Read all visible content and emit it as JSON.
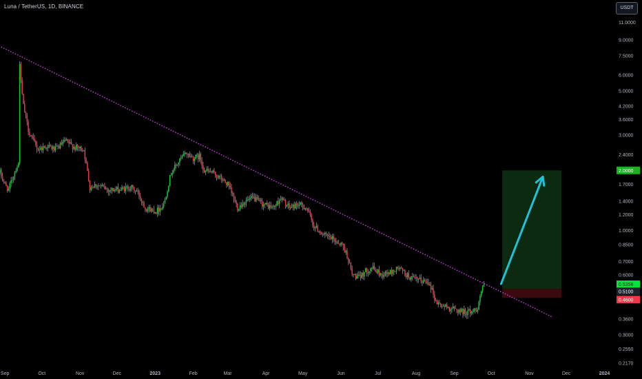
{
  "header": {
    "symbol_title": "Luna / TetherUS, 1D, BINANCE",
    "currency_button": "USDT"
  },
  "chart_data": {
    "type": "candlestick",
    "title": "Luna / TetherUS, 1D, BINANCE",
    "yscale": "log",
    "ylim": [
      0.205,
      11.6
    ],
    "x_tick_labels": [
      "Sep",
      "Oct",
      "Nov",
      "Dec",
      "2023",
      "Feb",
      "Mar",
      "Apr",
      "May",
      "Jun",
      "Jul",
      "Aug",
      "Sep",
      "Oct",
      "Nov",
      "Dec",
      "2024"
    ],
    "y_tick_labels": [
      "11.0000",
      "9.0000",
      "7.5000",
      "6.0000",
      "5.0000",
      "4.2000",
      "3.6000",
      "3.0000",
      "2.4000",
      "1.7000",
      "1.4000",
      "1.2000",
      "1.0000",
      "0.8500",
      "0.7000",
      "0.6000",
      "0.3600",
      "0.3000",
      "0.2550",
      "0.2170"
    ],
    "x_range": [
      "2022-08-28",
      "2024-01-08"
    ],
    "price_path": [
      [
        "2022-08-28",
        1.95
      ],
      [
        "2022-09-01",
        1.7
      ],
      [
        "2022-09-04",
        1.6
      ],
      [
        "2022-09-08",
        1.9
      ],
      [
        "2022-09-10",
        2.05
      ],
      [
        "2022-09-12",
        2.15
      ],
      [
        "2022-09-13",
        7.0
      ],
      [
        "2022-09-14",
        5.5
      ],
      [
        "2022-09-16",
        4.2
      ],
      [
        "2022-09-20",
        3.2
      ],
      [
        "2022-09-24",
        2.8
      ],
      [
        "2022-09-28",
        2.55
      ],
      [
        "2022-10-05",
        2.65
      ],
      [
        "2022-10-12",
        2.55
      ],
      [
        "2022-10-20",
        2.8
      ],
      [
        "2022-10-28",
        2.6
      ],
      [
        "2022-11-04",
        2.55
      ],
      [
        "2022-11-09",
        1.65
      ],
      [
        "2022-11-14",
        1.7
      ],
      [
        "2022-11-24",
        1.6
      ],
      [
        "2022-12-04",
        1.6
      ],
      [
        "2022-12-12",
        1.65
      ],
      [
        "2022-12-18",
        1.55
      ],
      [
        "2022-12-24",
        1.3
      ],
      [
        "2023-01-02",
        1.25
      ],
      [
        "2023-01-08",
        1.35
      ],
      [
        "2023-01-14",
        1.95
      ],
      [
        "2023-01-20",
        2.2
      ],
      [
        "2023-01-26",
        2.45
      ],
      [
        "2023-02-01",
        2.3
      ],
      [
        "2023-02-06",
        2.35
      ],
      [
        "2023-02-10",
        2.0
      ],
      [
        "2023-02-16",
        1.95
      ],
      [
        "2023-02-22",
        1.85
      ],
      [
        "2023-03-01",
        1.7
      ],
      [
        "2023-03-09",
        1.3
      ],
      [
        "2023-03-15",
        1.4
      ],
      [
        "2023-03-22",
        1.45
      ],
      [
        "2023-03-30",
        1.35
      ],
      [
        "2023-04-07",
        1.3
      ],
      [
        "2023-04-13",
        1.45
      ],
      [
        "2023-04-20",
        1.3
      ],
      [
        "2023-04-27",
        1.35
      ],
      [
        "2023-05-04",
        1.3
      ],
      [
        "2023-05-10",
        1.05
      ],
      [
        "2023-05-18",
        0.95
      ],
      [
        "2023-05-26",
        0.9
      ],
      [
        "2023-06-02",
        0.85
      ],
      [
        "2023-06-06",
        0.75
      ],
      [
        "2023-06-10",
        0.6
      ],
      [
        "2023-06-16",
        0.58
      ],
      [
        "2023-06-20",
        0.62
      ],
      [
        "2023-06-26",
        0.65
      ],
      [
        "2023-07-04",
        0.6
      ],
      [
        "2023-07-12",
        0.62
      ],
      [
        "2023-07-18",
        0.65
      ],
      [
        "2023-07-24",
        0.6
      ],
      [
        "2023-07-30",
        0.57
      ],
      [
        "2023-08-06",
        0.56
      ],
      [
        "2023-08-12",
        0.55
      ],
      [
        "2023-08-17",
        0.44
      ],
      [
        "2023-08-22",
        0.42
      ],
      [
        "2023-08-28",
        0.41
      ],
      [
        "2023-09-03",
        0.4
      ],
      [
        "2023-09-10",
        0.39
      ],
      [
        "2023-09-16",
        0.395
      ],
      [
        "2023-09-20",
        0.41
      ],
      [
        "2023-09-23",
        0.5
      ],
      [
        "2023-09-25",
        0.5358
      ]
    ],
    "annotations": {
      "trendline": {
        "start": [
          "2022-08-29",
          8.3
        ],
        "end": [
          "2023-11-20",
          0.368
        ],
        "color": "#e040fb",
        "style": "dotted"
      },
      "target_zone": {
        "x_start": "2023-10-10",
        "x_end": "2023-11-27",
        "low": 0.51,
        "high": 2.0,
        "color": "#0b2a10"
      },
      "stop_zone": {
        "x_start": "2023-10-10",
        "x_end": "2023-11-27",
        "low": 0.46,
        "high": 0.51,
        "color": "#3a0a0e"
      },
      "arrow": {
        "start": [
          "2023-10-09",
          0.54
        ],
        "end": [
          "2023-11-12",
          1.86
        ],
        "color": "#1fc2d9"
      }
    },
    "price_labels": [
      {
        "label": "2.0000",
        "value": 2.0,
        "bg": "#1db11d",
        "fg": "#ffffff"
      },
      {
        "label": "0.5358",
        "value": 0.5358,
        "bg": "#00e63c",
        "fg": "#0a3d12",
        "sublabel": "11:05:21"
      },
      {
        "label": "0.5100",
        "value": 0.51,
        "bg": "#1e222d",
        "fg": "#ffffff"
      },
      {
        "label": "0.4600",
        "value": 0.46,
        "bg": "#f23645",
        "fg": "#ffffff"
      }
    ],
    "colors": {
      "up": "#08d12f",
      "down": "#f23645",
      "wick": "#8e939e",
      "axis_text": "#b2b5be",
      "background": "#000000"
    },
    "grid": false
  }
}
